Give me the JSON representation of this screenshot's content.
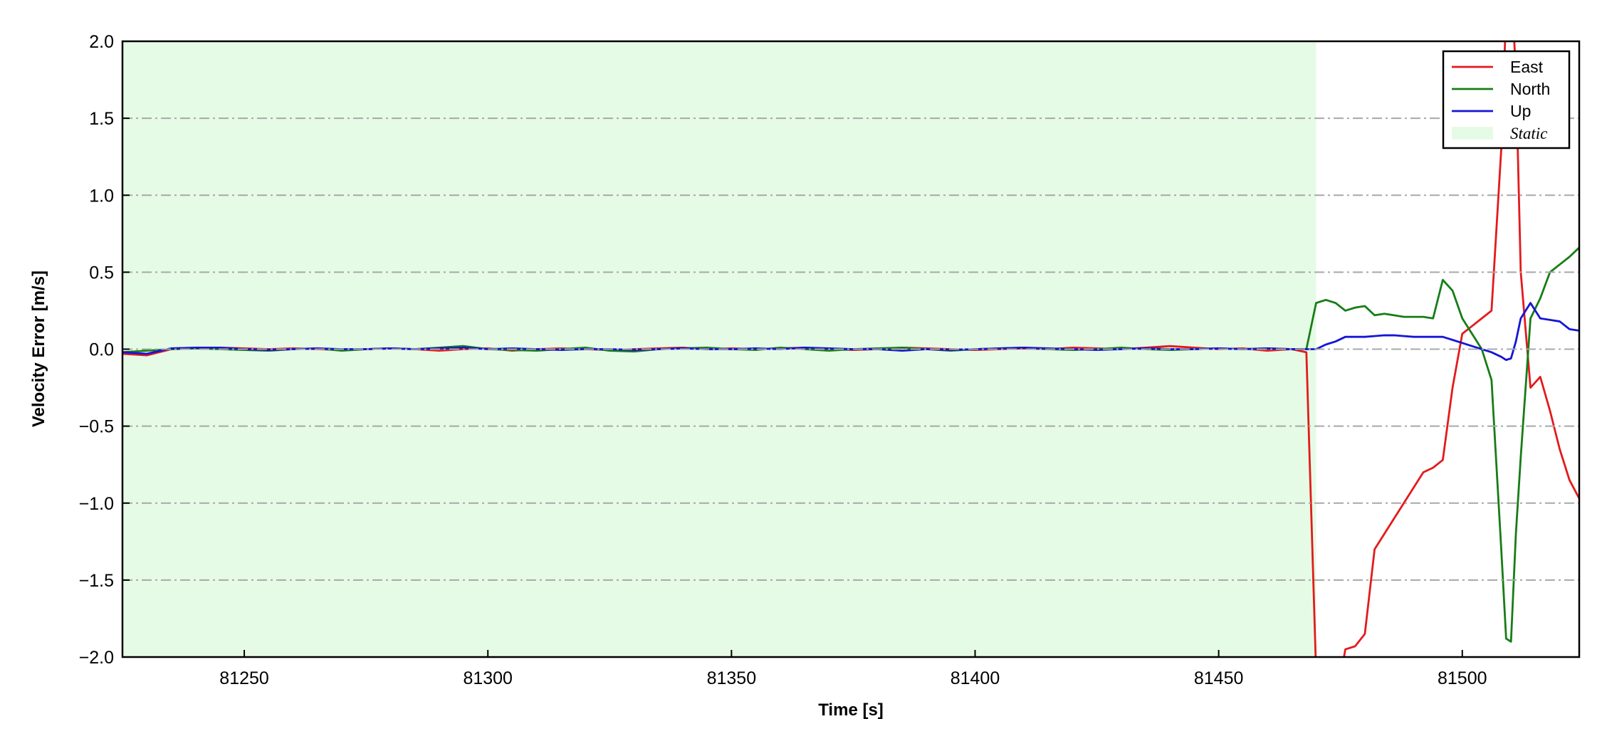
{
  "chart_data": {
    "type": "line",
    "xlabel": "Time [s]",
    "ylabel": "Velocity Error [m/s]",
    "x": [
      81225,
      81230,
      81235,
      81240,
      81245,
      81250,
      81255,
      81260,
      81265,
      81270,
      81275,
      81280,
      81285,
      81290,
      81295,
      81300,
      81305,
      81310,
      81315,
      81320,
      81325,
      81330,
      81335,
      81340,
      81345,
      81350,
      81355,
      81360,
      81365,
      81370,
      81375,
      81380,
      81385,
      81390,
      81395,
      81400,
      81405,
      81410,
      81415,
      81420,
      81425,
      81430,
      81435,
      81440,
      81445,
      81450,
      81455,
      81460,
      81465,
      81468,
      81470,
      81472,
      81474,
      81476,
      81478,
      81480,
      81482,
      81484,
      81486,
      81488,
      81490,
      81492,
      81494,
      81496,
      81498,
      81500,
      81502,
      81504,
      81506,
      81508,
      81509,
      81510,
      81511,
      81512,
      81514,
      81516,
      81518,
      81520,
      81522,
      81524
    ],
    "series": [
      {
        "name": "East",
        "color": "#e31a1c",
        "values": [
          -0.03,
          -0.04,
          0,
          0.005,
          0.01,
          0.005,
          0,
          0.005,
          0,
          -0.005,
          0,
          0.005,
          0,
          -0.01,
          0,
          0.005,
          -0.01,
          0,
          0.005,
          0,
          -0.005,
          0,
          0.005,
          0.01,
          0,
          0.005,
          0,
          0.005,
          0.01,
          0,
          -0.005,
          0,
          0.01,
          0.005,
          0,
          -0.005,
          0,
          0.005,
          0,
          0.01,
          0.005,
          0,
          0.01,
          0.02,
          0.01,
          0,
          0.005,
          -0.01,
          0,
          -0.02,
          -2.1,
          -2.5,
          -2.3,
          -1.95,
          -1.93,
          -1.85,
          -1.3,
          -1.2,
          -1.1,
          -1.0,
          -0.9,
          -0.8,
          -0.77,
          -0.72,
          -0.25,
          0.1,
          0.15,
          0.2,
          0.25,
          1.3,
          2.2,
          2.4,
          1.8,
          0.5,
          -0.25,
          -0.18,
          -0.4,
          -0.65,
          -0.85,
          -0.97
        ]
      },
      {
        "name": "North",
        "color": "#167d16",
        "values": [
          -0.02,
          -0.01,
          0,
          0.005,
          0,
          -0.005,
          -0.01,
          0,
          0.005,
          -0.01,
          0,
          0.005,
          0,
          0.01,
          0.02,
          0,
          -0.005,
          -0.01,
          0,
          0.01,
          -0.01,
          -0.015,
          0,
          0.005,
          0.01,
          0,
          -0.005,
          0.01,
          0,
          -0.01,
          0,
          0.005,
          0.01,
          0,
          -0.01,
          0,
          0.005,
          0.01,
          0,
          -0.005,
          0,
          0.01,
          0,
          -0.005,
          0,
          0.005,
          0,
          0.005,
          0,
          0,
          0.3,
          0.32,
          0.3,
          0.25,
          0.27,
          0.28,
          0.22,
          0.23,
          0.22,
          0.21,
          0.21,
          0.21,
          0.2,
          0.45,
          0.38,
          0.2,
          0.1,
          0.0,
          -0.2,
          -1.3,
          -1.88,
          -1.9,
          -1.2,
          -0.7,
          0.2,
          0.33,
          0.5,
          0.55,
          0.6,
          0.66
        ]
      },
      {
        "name": "Up",
        "color": "#1515d6",
        "values": [
          -0.02,
          -0.03,
          0.005,
          0.01,
          0.01,
          0,
          -0.005,
          0,
          0.005,
          0,
          0,
          0.005,
          0,
          0.005,
          0.01,
          0,
          0.005,
          0,
          -0.005,
          0,
          0,
          -0.005,
          0,
          0.005,
          0,
          0,
          0.005,
          0,
          0.01,
          0.005,
          0,
          0,
          -0.01,
          0,
          -0.005,
          0,
          0.005,
          0.01,
          0.005,
          0,
          -0.005,
          0,
          0.005,
          0,
          0,
          0.005,
          0,
          0.005,
          0,
          0,
          0.0,
          0.03,
          0.05,
          0.08,
          0.08,
          0.08,
          0.085,
          0.09,
          0.09,
          0.085,
          0.08,
          0.08,
          0.08,
          0.08,
          0.06,
          0.04,
          0.02,
          0.0,
          -0.02,
          -0.05,
          -0.07,
          -0.06,
          0.05,
          0.2,
          0.3,
          0.2,
          0.19,
          0.18,
          0.13,
          0.12
        ]
      }
    ],
    "shaded_regions": [
      {
        "label": "Static",
        "x0": 81225,
        "x1": 81470,
        "color": "#e6fbe6"
      }
    ],
    "xlim": [
      81225,
      81524
    ],
    "ylim": [
      -2.0,
      2.0
    ],
    "xticks": [
      81250,
      81300,
      81350,
      81400,
      81450,
      81500
    ],
    "yticks": [
      {
        "value": -2.0,
        "label": "−2.0"
      },
      {
        "value": -1.5,
        "label": "−1.5"
      },
      {
        "value": -1.0,
        "label": "−1.0"
      },
      {
        "value": -0.5,
        "label": "−0.5"
      },
      {
        "value": 0,
        "label": "0.0"
      },
      {
        "value": 0.5,
        "label": "0.5"
      },
      {
        "value": 1.0,
        "label": "1.0"
      },
      {
        "value": 1.5,
        "label": "1.5"
      },
      {
        "value": 2.0,
        "label": "2.0"
      }
    ],
    "grid": true,
    "legend": "upper right"
  }
}
